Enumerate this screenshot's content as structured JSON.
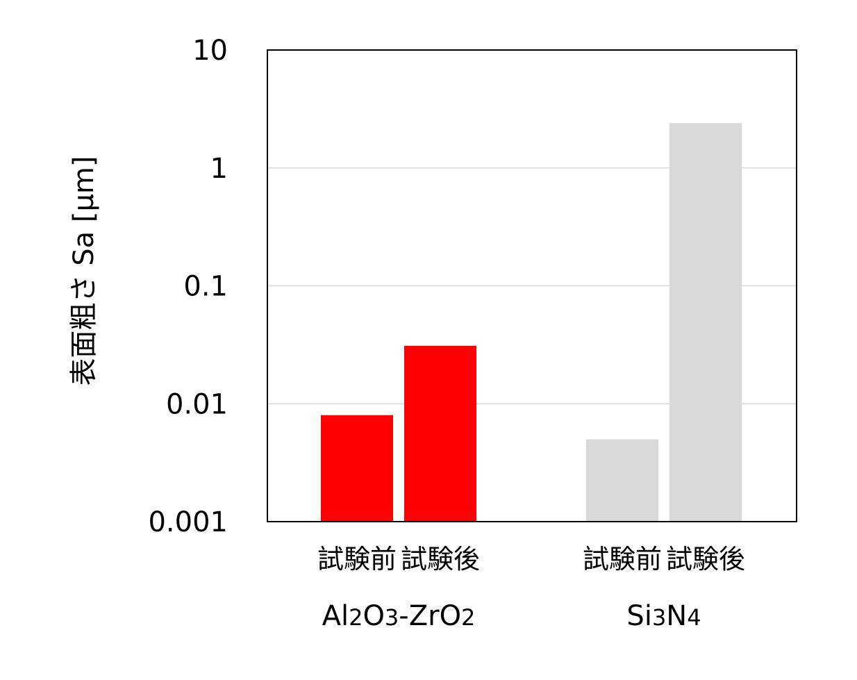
{
  "chart_data": {
    "type": "bar",
    "ylabel": "表面粗さ Sa [μm]",
    "yscale": "log",
    "ylim": [
      0.001,
      10
    ],
    "yticks": [
      "0.001",
      "0.01",
      "0.1",
      "1",
      "10"
    ],
    "grid": "horizontal",
    "legend": "none",
    "groups": [
      {
        "label": "Al2O3-ZrO2",
        "label_parts": [
          {
            "text": "Al",
            "sub": false
          },
          {
            "text": "2",
            "sub": true
          },
          {
            "text": "O",
            "sub": false
          },
          {
            "text": "3",
            "sub": true
          },
          {
            "text": "-ZrO",
            "sub": false
          },
          {
            "text": "2",
            "sub": true
          }
        ],
        "color": "#ff0000",
        "bars": [
          {
            "category": "試験前",
            "value": 0.008
          },
          {
            "category": "試験後",
            "value": 0.031
          }
        ]
      },
      {
        "label": "Si3N4",
        "label_parts": [
          {
            "text": "Si",
            "sub": false
          },
          {
            "text": "3",
            "sub": true
          },
          {
            "text": "N",
            "sub": false
          },
          {
            "text": "4",
            "sub": true
          }
        ],
        "color": "#d9d9d9",
        "bars": [
          {
            "category": "試験前",
            "value": 0.005
          },
          {
            "category": "試験後",
            "value": 2.4
          }
        ]
      }
    ]
  }
}
